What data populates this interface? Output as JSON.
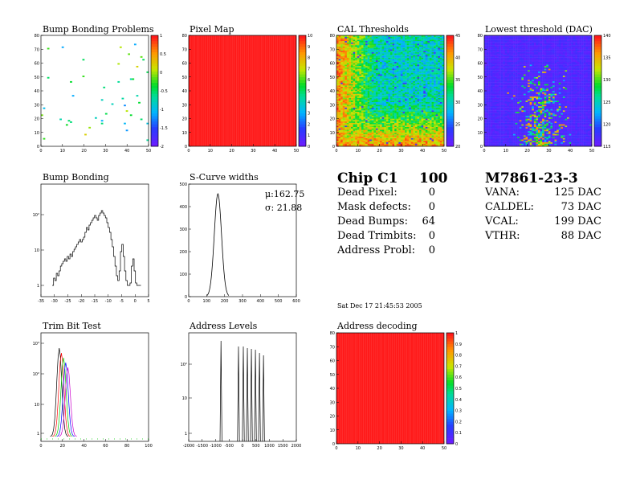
{
  "panels": {
    "bump_bonding_problems": {
      "title": "Bump Bonding Problems"
    },
    "pixel_map": {
      "title": "Pixel Map"
    },
    "cal_thresholds": {
      "title": "CAL Thresholds"
    },
    "lowest_threshold": {
      "title": "Lowest threshold (DAC)"
    },
    "bump_bonding": {
      "title": "Bump Bonding"
    },
    "scurve_widths": {
      "title": "S-Curve widths",
      "stat_mu": "μ:162.75",
      "stat_sigma": "σ: 21.88"
    },
    "trim_bit_test": {
      "title": "Trim Bit Test"
    },
    "address_levels": {
      "title": "Address Levels"
    },
    "address_decoding": {
      "title": "Address decoding"
    }
  },
  "chip_summary": {
    "chip_label": "Chip C1",
    "chip_score": "100",
    "rows": [
      {
        "label": "Dead Pixel:",
        "value": "0"
      },
      {
        "label": "Mask defects:",
        "value": "0"
      },
      {
        "label": "Dead Bumps:",
        "value": "64"
      },
      {
        "label": "Dead Trimbits:",
        "value": "0"
      },
      {
        "label": "Address Probl:",
        "value": "0"
      }
    ]
  },
  "module_summary": {
    "module_id": "M7861-23-3",
    "rows": [
      {
        "label": "VANA:",
        "value": "125 DAC"
      },
      {
        "label": "CALDEL:",
        "value": "73 DAC"
      },
      {
        "label": "VCAL:",
        "value": "199 DAC"
      },
      {
        "label": "VTHR:",
        "value": "88 DAC"
      }
    ]
  },
  "date_stamp": "Sat Dec 17 21:45:53 2005",
  "colors": {
    "red": "#ff1a1a",
    "violet": "#6a1bff",
    "green": "#00cc44"
  },
  "chart_data": [
    {
      "id": "bump_bonding_problems",
      "type": "heatmap",
      "title": "Bump Bonding Problems",
      "xticks": [
        "0",
        "10",
        "20",
        "30",
        "40",
        "50"
      ],
      "yticks": [
        "0",
        "10",
        "20",
        "30",
        "40",
        "50",
        "60",
        "70",
        "80"
      ],
      "zticks": [
        "1",
        "0.5",
        "0",
        "-0.5",
        "-1",
        "-1.5",
        "-2"
      ],
      "xlim": [
        0,
        52
      ],
      "ylim": [
        0,
        80
      ],
      "zlim": [
        -2,
        1
      ],
      "note": "sparse scattered pixels, mostly green/cyan"
    },
    {
      "id": "pixel_map",
      "type": "heatmap",
      "title": "Pixel Map",
      "xticks": [
        "0",
        "10",
        "20",
        "30",
        "40",
        "50"
      ],
      "yticks": [
        "0",
        "10",
        "20",
        "30",
        "40",
        "50",
        "60",
        "70",
        "80"
      ],
      "zticks": [
        "10",
        "9",
        "8",
        "7",
        "6",
        "5",
        "4",
        "3",
        "2",
        "1",
        "0"
      ],
      "xlim": [
        0,
        52
      ],
      "ylim": [
        0,
        80
      ],
      "zlim": [
        0,
        10
      ],
      "uniform_value": 10
    },
    {
      "id": "cal_thresholds",
      "type": "heatmap",
      "title": "CAL Thresholds",
      "xticks": [
        "0",
        "10",
        "20",
        "30",
        "40",
        "50"
      ],
      "yticks": [
        "0",
        "10",
        "20",
        "30",
        "40",
        "50",
        "60",
        "70",
        "80"
      ],
      "zticks": [
        "45",
        "40",
        "35",
        "30",
        "25",
        "20"
      ],
      "xlim": [
        0,
        52
      ],
      "ylim": [
        0,
        80
      ],
      "zlim": [
        18,
        47
      ]
    },
    {
      "id": "lowest_threshold",
      "type": "heatmap",
      "title": "Lowest threshold (DAC)",
      "xticks": [
        "0",
        "10",
        "20",
        "30",
        "40",
        "50"
      ],
      "yticks": [
        "0",
        "10",
        "20",
        "30",
        "40",
        "50",
        "60",
        "70",
        "80"
      ],
      "zticks": [
        "140",
        "135",
        "130",
        "125",
        "120",
        "115"
      ],
      "xlim": [
        0,
        52
      ],
      "ylim": [
        0,
        80
      ],
      "zlim": [
        112,
        142
      ]
    },
    {
      "id": "bump_bonding",
      "type": "line",
      "title": "Bump Bonding",
      "log_y": true,
      "xticks": [
        "-35",
        "-30",
        "-25",
        "-20",
        "-15",
        "-10",
        "-5",
        "0",
        "5"
      ],
      "yticks": [
        "1",
        "10",
        "10²"
      ],
      "xlim": [
        -36,
        5
      ]
    },
    {
      "id": "scurve_widths",
      "type": "line",
      "title": "S-Curve widths",
      "xticks": [
        "0",
        "100",
        "200",
        "300",
        "400",
        "500",
        "600"
      ],
      "yticks": [
        "0",
        "100",
        "200",
        "300",
        "400",
        "500"
      ],
      "xlim": [
        0,
        600
      ],
      "ylim": [
        0,
        560
      ],
      "mean": 162.75,
      "rms": 21.88
    },
    {
      "id": "trim_bit_test",
      "type": "line",
      "title": "Trim Bit Test",
      "log_y": true,
      "xticks": [
        "0",
        "20",
        "40",
        "60",
        "80",
        "100"
      ],
      "yticks": [
        "1",
        "10",
        "10²",
        "10³"
      ],
      "xlim": [
        0,
        100
      ],
      "series_colors": [
        "#000000",
        "#ff0000",
        "#00cc00",
        "#0000ff",
        "#cc00cc"
      ]
    },
    {
      "id": "address_levels",
      "type": "line",
      "title": "Address Levels",
      "log_y": true,
      "xticks": [
        "-2000",
        "-1500",
        "-1000",
        "-500",
        "0",
        "500",
        "1000",
        "1500",
        "2000"
      ],
      "yticks": [
        "1",
        "10",
        "10²"
      ],
      "xlim": [
        -2000,
        2000
      ]
    },
    {
      "id": "address_decoding",
      "type": "heatmap",
      "title": "Address decoding",
      "xticks": [
        "0",
        "10",
        "20",
        "30",
        "40",
        "50"
      ],
      "yticks": [
        "0",
        "10",
        "20",
        "30",
        "40",
        "50",
        "60",
        "70",
        "80"
      ],
      "zticks": [
        "1",
        "0.9",
        "0.8",
        "0.7",
        "0.6",
        "0.5",
        "0.4",
        "0.3",
        "0.2",
        "0.1",
        "0"
      ],
      "xlim": [
        0,
        52
      ],
      "ylim": [
        0,
        80
      ],
      "zlim": [
        0,
        1
      ],
      "uniform_value": 1
    }
  ]
}
